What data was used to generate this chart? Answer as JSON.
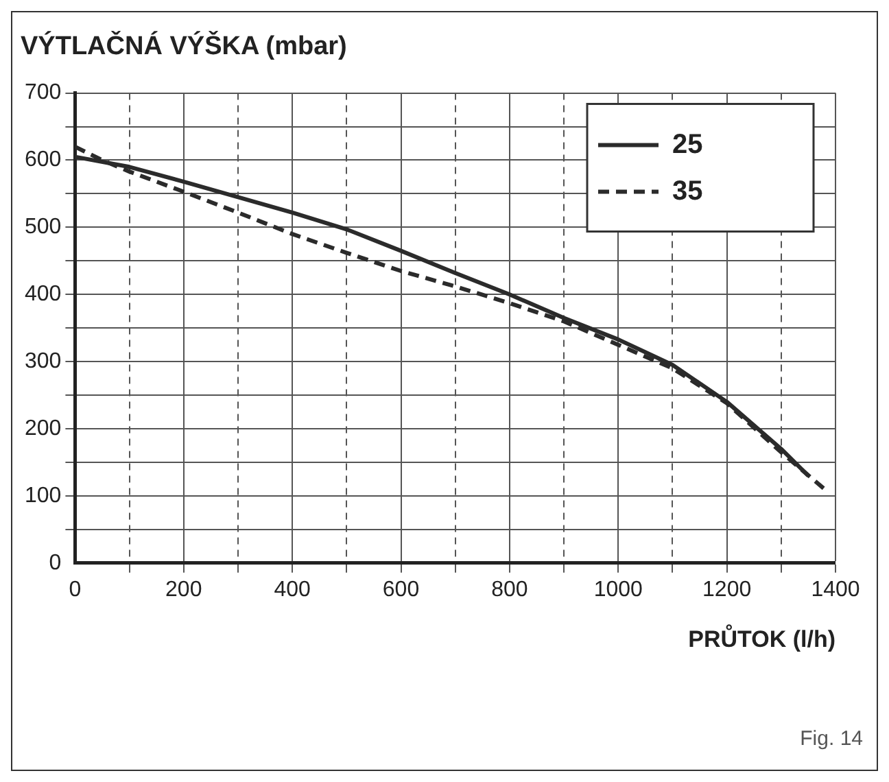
{
  "chart_data": {
    "type": "line",
    "title": "VÝTLAČNÁ VÝŠKA (mbar)",
    "xlabel": "PRŮTOK (l/h)",
    "annotations": [
      "Fig. 14"
    ],
    "series": [
      {
        "name": "25",
        "color": "#2b2b2b",
        "line_style": "solid",
        "x": [
          0,
          100,
          200,
          300,
          400,
          500,
          600,
          700,
          800,
          900,
          1000,
          1100,
          1200,
          1300,
          1350
        ],
        "values": [
          605,
          590,
          568,
          545,
          522,
          497,
          465,
          432,
          400,
          365,
          333,
          295,
          240,
          170,
          130
        ]
      },
      {
        "name": "35",
        "color": "#2b2b2b",
        "line_style": "dashed",
        "x": [
          0,
          50,
          100,
          200,
          300,
          400,
          500,
          600,
          700,
          800,
          900,
          1000,
          1100,
          1200,
          1300,
          1380
        ],
        "values": [
          620,
          600,
          583,
          553,
          522,
          490,
          462,
          435,
          412,
          387,
          360,
          325,
          290,
          238,
          165,
          110
        ]
      }
    ],
    "xlim": [
      0,
      1400
    ],
    "xticks": [
      0,
      {
        "value": 100,
        "label": null
      },
      200,
      {
        "value": 300,
        "label": null
      },
      400,
      {
        "value": 500,
        "label": null
      },
      600,
      {
        "value": 700,
        "label": null
      },
      800,
      {
        "value": 900,
        "label": null
      },
      1000,
      {
        "value": 1100,
        "label": null
      },
      1200,
      {
        "value": 1300,
        "label": null
      },
      1400
    ],
    "ylim": [
      0,
      700
    ],
    "yticks": [
      0,
      {
        "value": 50,
        "label": null
      },
      100,
      {
        "value": 150,
        "label": null
      },
      200,
      {
        "value": 250,
        "label": null
      },
      300,
      {
        "value": 350,
        "label": null
      },
      400,
      {
        "value": 450,
        "label": null
      },
      500,
      {
        "value": 550,
        "label": null
      },
      600,
      {
        "value": 650,
        "label": null
      },
      700
    ],
    "grid": true,
    "legend": "top right",
    "marker": "none"
  }
}
